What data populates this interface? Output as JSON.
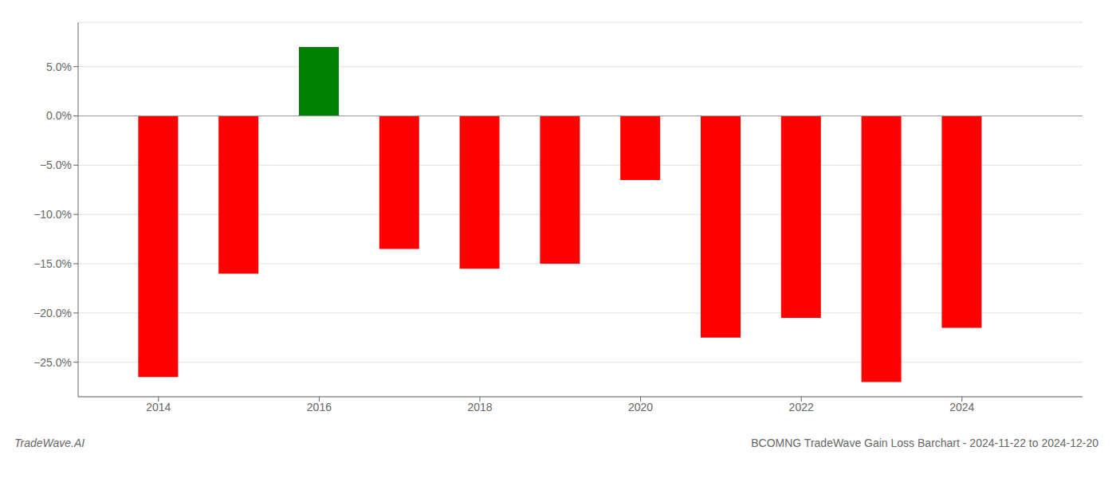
{
  "chart_data": {
    "type": "bar",
    "title": "BCOMNG TradeWave Gain Loss Barchart - 2024-11-22 to 2024-12-20",
    "annotations": [
      "TradeWave.AI"
    ],
    "x": [
      2014,
      2015,
      2016,
      2017,
      2018,
      2019,
      2020,
      2021,
      2022,
      2023,
      2024
    ],
    "values": [
      -26.5,
      -16.0,
      7.0,
      -13.5,
      -15.5,
      -15.0,
      -6.5,
      -22.5,
      -20.5,
      -27.0,
      -21.5
    ],
    "colors": [
      "#ff0000",
      "#ff0000",
      "#008000",
      "#ff0000",
      "#ff0000",
      "#ff0000",
      "#ff0000",
      "#ff0000",
      "#ff0000",
      "#ff0000",
      "#ff0000"
    ],
    "xlim": [
      2013.0,
      2025.5
    ],
    "xticks": [
      2014,
      2016,
      2018,
      2020,
      2022,
      2024
    ],
    "ylim": [
      -28.5,
      9.5
    ],
    "yticks": [
      {
        "value": -25.0,
        "label": "−25.0%"
      },
      {
        "value": -20.0,
        "label": "−20.0%"
      },
      {
        "value": -15.0,
        "label": "−15.0%"
      },
      {
        "value": -10.0,
        "label": "−10.0%"
      },
      {
        "value": -5.0,
        "label": "−5.0%"
      },
      {
        "value": 0.0,
        "label": "0.0%"
      },
      {
        "value": 5.0,
        "label": "5.0%"
      }
    ],
    "grid": "y"
  }
}
